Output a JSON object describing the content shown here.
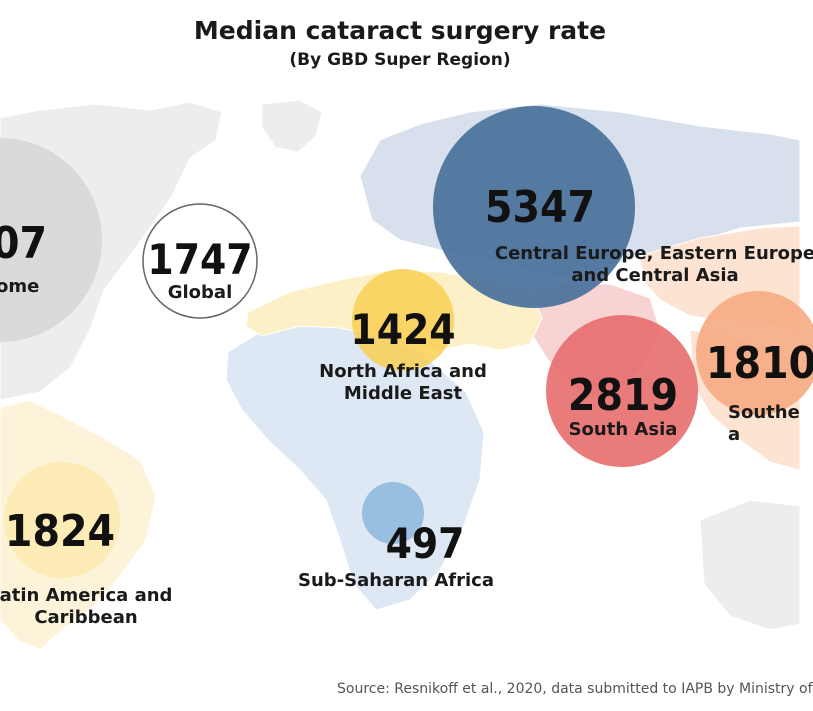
{
  "title": "Median cataract surgery rate",
  "subtitle": "(By GBD Super Region)",
  "source": "Source: Resnikoff et al., 2020, data submitted to IAPB by Ministry of",
  "regions": [
    {
      "id": "high-income",
      "value": "07",
      "label_lines": [
        "ome"
      ],
      "color": "#d6d6d6"
    },
    {
      "id": "global",
      "value": "1747",
      "label_lines": [
        "Global"
      ],
      "color": "#ffffff"
    },
    {
      "id": "central-europe",
      "value": "5347",
      "label_lines": [
        "Central Europe, Eastern Europe",
        "and Central Asia"
      ],
      "color": "#49719b"
    },
    {
      "id": "north-africa",
      "value": "1424",
      "label_lines": [
        "North Africa and",
        "Middle East"
      ],
      "color": "#f9cf52"
    },
    {
      "id": "south-asia",
      "value": "2819",
      "label_lines": [
        "South Asia"
      ],
      "color": "#e86d6d"
    },
    {
      "id": "southeast-asia",
      "value": "1810",
      "label_lines": [
        "Southe",
        "a"
      ],
      "color": "#f6aa82"
    },
    {
      "id": "latin-america",
      "value": "1824",
      "label_lines": [
        "atin America and",
        "Caribbean"
      ],
      "color": "#fdebb3"
    },
    {
      "id": "sub-saharan",
      "value": "497",
      "label_lines": [
        "Sub-Saharan Africa"
      ],
      "color": "#8db7dc"
    }
  ],
  "colors": {
    "land_default": "#ededed",
    "tint_europe_asia": "#d7e0ec",
    "tint_china": "#fde3d2",
    "tint_south_asia": "#f7d3d3",
    "tint_africa": "#dde8f4",
    "tint_north_africa": "#fdf0c6",
    "tint_latin_america": "#fdf3d9"
  }
}
